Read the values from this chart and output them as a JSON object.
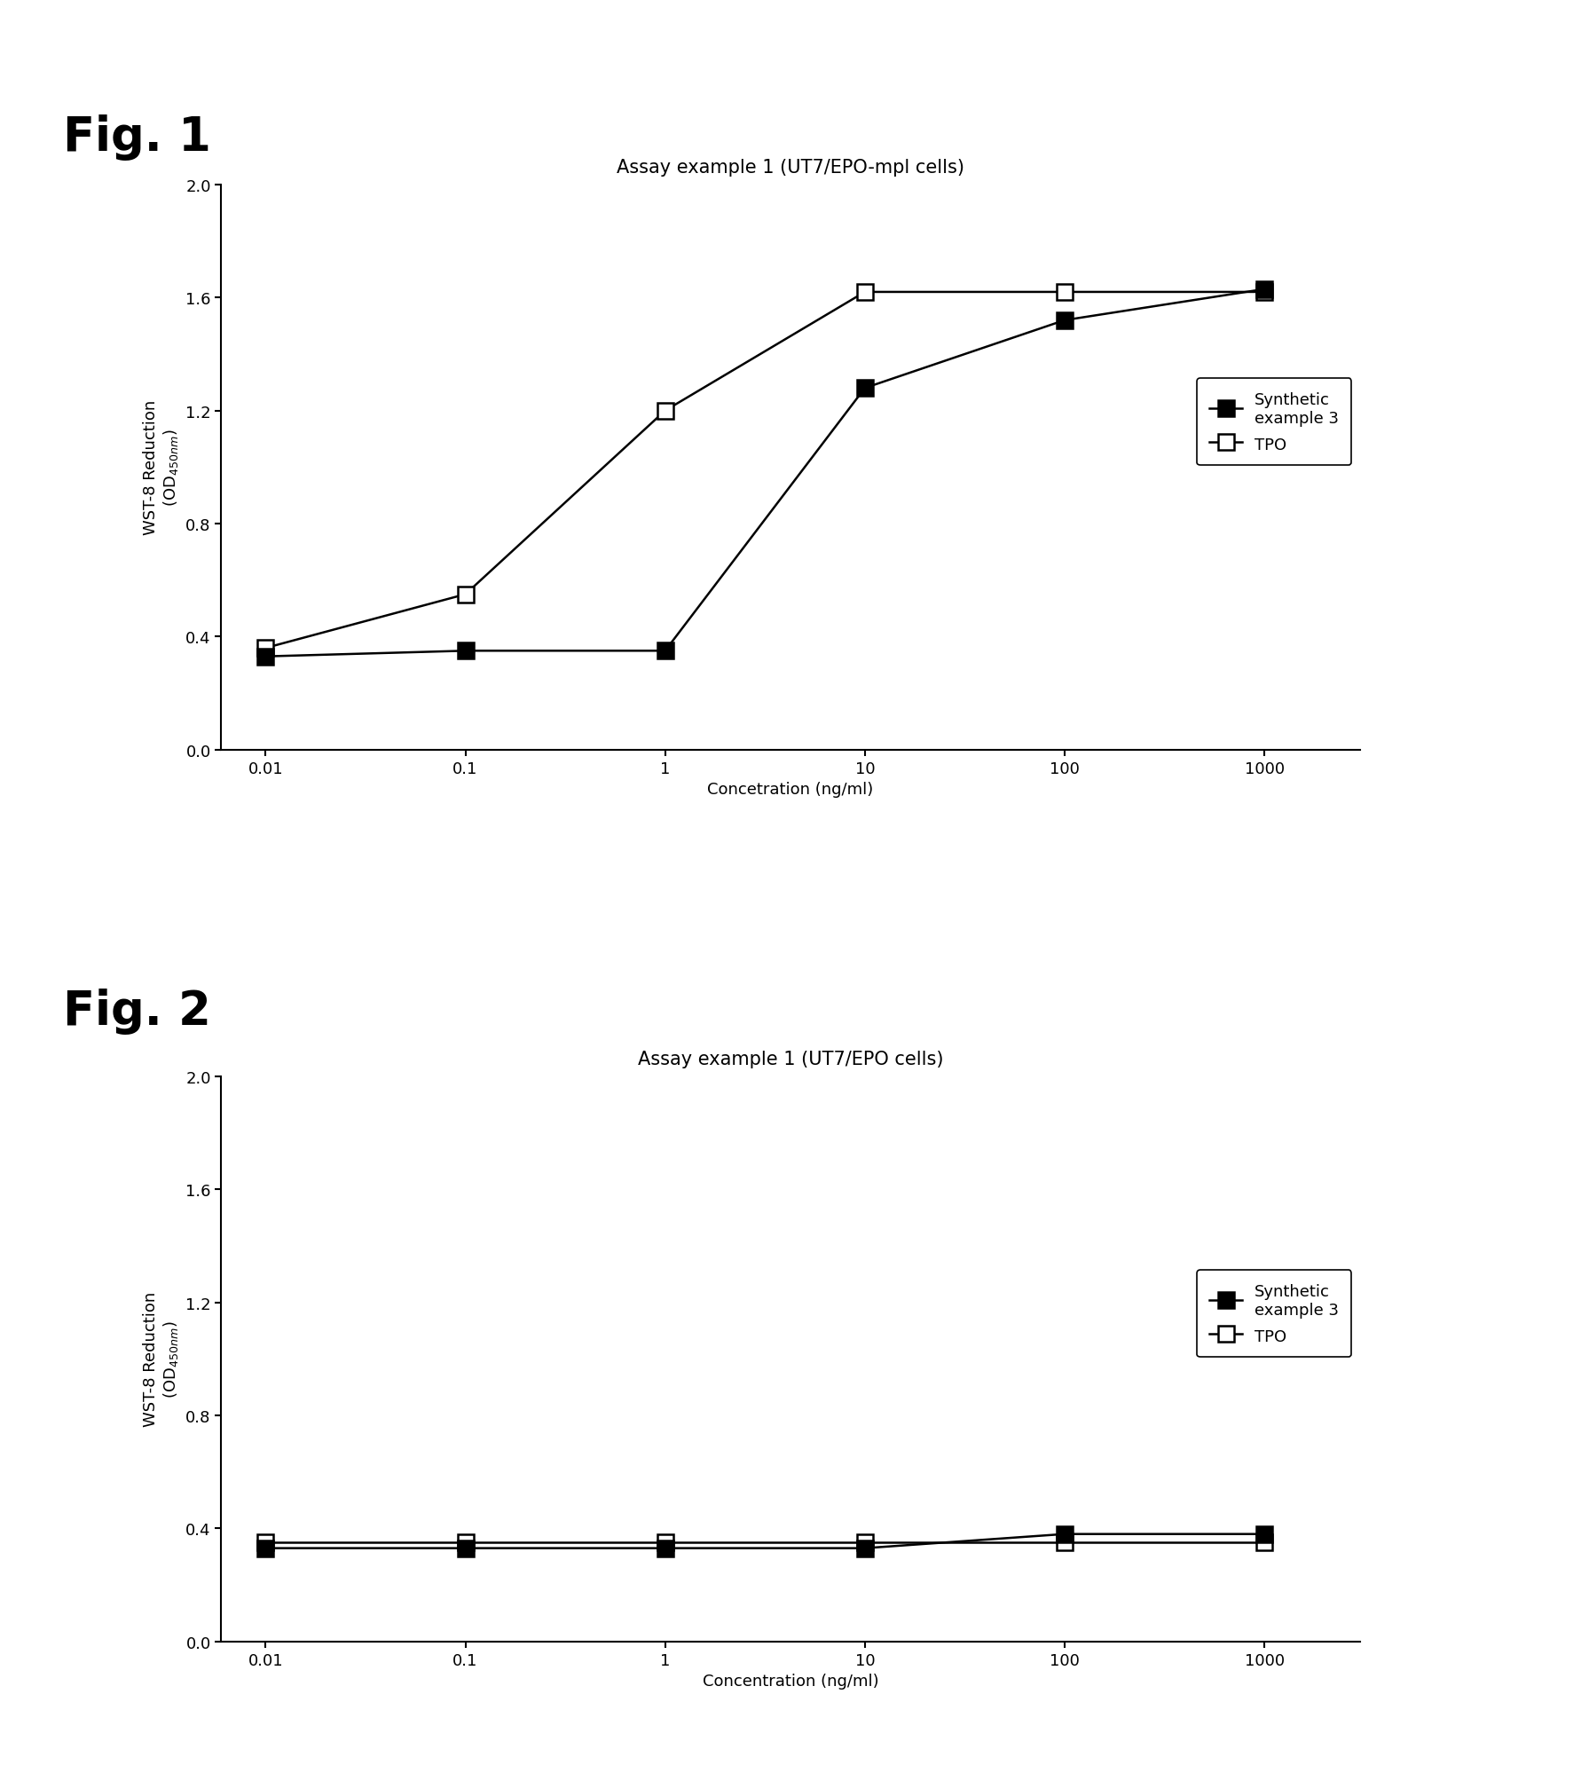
{
  "fig1": {
    "title": "Assay example 1 (UT7/EPO-mpl cells)",
    "series_synth": {
      "label": "Synthetic\nexample 3",
      "x": [
        0.01,
        0.1,
        1,
        10,
        100,
        1000
      ],
      "y": [
        0.33,
        0.35,
        0.35,
        1.28,
        1.52,
        1.63
      ]
    },
    "series_tpo": {
      "label": "TPO",
      "x": [
        0.01,
        0.1,
        1,
        10,
        100,
        1000
      ],
      "y": [
        0.36,
        0.55,
        1.2,
        1.62,
        1.62,
        1.62
      ]
    },
    "xlabel": "Concetration (ng/ml)",
    "ylim": [
      0.0,
      2.0
    ],
    "yticks": [
      0.0,
      0.4,
      0.8,
      1.2,
      1.6,
      2.0
    ]
  },
  "fig2": {
    "title": "Assay example 1 (UT7/EPO cells)",
    "series_synth": {
      "label": "Synthetic\nexample 3",
      "x": [
        0.01,
        0.1,
        1,
        10,
        100,
        1000
      ],
      "y": [
        0.33,
        0.33,
        0.33,
        0.33,
        0.38,
        0.38
      ]
    },
    "series_tpo": {
      "label": "TPO",
      "x": [
        0.01,
        0.1,
        1,
        10,
        100,
        1000
      ],
      "y": [
        0.35,
        0.35,
        0.35,
        0.35,
        0.35,
        0.35
      ]
    },
    "xlabel": "Concentration (ng/ml)",
    "ylim": [
      0.0,
      2.0
    ],
    "yticks": [
      0.0,
      0.4,
      0.8,
      1.2,
      1.6,
      2.0
    ]
  },
  "fig1_label": "Fig. 1",
  "fig2_label": "Fig. 2",
  "ylabel": "WST-8 Reduction\n(OD",
  "ylabel_sub": "450nm",
  "ylabel_suffix": ")",
  "background_color": "#ffffff",
  "xtick_labels": [
    "0.01",
    "0.1",
    "1",
    "10",
    "100",
    "1000"
  ],
  "xtick_vals": [
    0.01,
    0.1,
    1,
    10,
    100,
    1000
  ],
  "markersize": 13,
  "linewidth": 1.8,
  "title_fontsize": 15,
  "label_fontsize": 13,
  "tick_fontsize": 13,
  "fig_label_fontsize": 38
}
